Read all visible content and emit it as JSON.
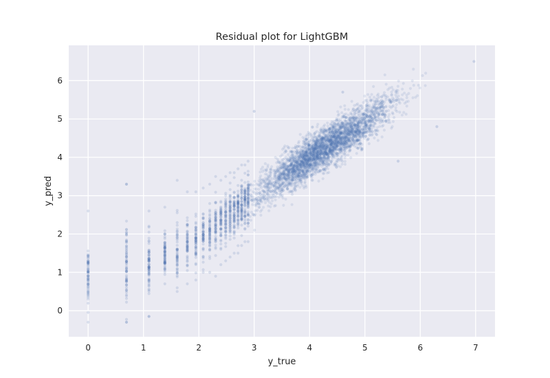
{
  "chart_data": {
    "type": "scatter",
    "title": "Residual plot for LightGBM",
    "xlabel": "y_true",
    "ylabel": "y_pred",
    "xlim": [
      -0.35,
      7.35
    ],
    "ylim": [
      -0.68,
      6.92
    ],
    "xticks": [
      0,
      1,
      2,
      3,
      4,
      5,
      6,
      7
    ],
    "yticks": [
      0,
      1,
      2,
      3,
      4,
      5,
      6
    ],
    "grid": true,
    "legend": "none",
    "colors": {
      "point": "#4c72b0",
      "background": "#eaeaf2",
      "grid": "#ffffff"
    },
    "discrete_columns": [
      {
        "x": 0.0,
        "y_min": -0.3,
        "y_max": 2.6,
        "y_center": 0.9
      },
      {
        "x": 0.693,
        "y_min": -0.3,
        "y_max": 3.3,
        "y_center": 1.1
      },
      {
        "x": 1.099,
        "y_min": -0.15,
        "y_max": 2.6,
        "y_center": 1.3
      },
      {
        "x": 1.386,
        "y_min": 0.7,
        "y_max": 2.7,
        "y_center": 1.45
      },
      {
        "x": 1.609,
        "y_min": 0.5,
        "y_max": 3.4,
        "y_center": 1.6
      },
      {
        "x": 1.792,
        "y_min": 0.7,
        "y_max": 3.1,
        "y_center": 1.75
      },
      {
        "x": 1.946,
        "y_min": 0.8,
        "y_max": 3.1,
        "y_center": 1.85
      },
      {
        "x": 2.079,
        "y_min": 1.0,
        "y_max": 3.2,
        "y_center": 2.0
      },
      {
        "x": 2.197,
        "y_min": 1.0,
        "y_max": 3.3,
        "y_center": 2.1
      },
      {
        "x": 2.303,
        "y_min": 0.9,
        "y_max": 3.5,
        "y_center": 2.2
      },
      {
        "x": 2.398,
        "y_min": 1.2,
        "y_max": 3.4,
        "y_center": 2.3
      },
      {
        "x": 2.485,
        "y_min": 1.3,
        "y_max": 3.5,
        "y_center": 2.4
      },
      {
        "x": 2.565,
        "y_min": 1.4,
        "y_max": 3.6,
        "y_center": 2.5
      },
      {
        "x": 2.639,
        "y_min": 1.5,
        "y_max": 3.6,
        "y_center": 2.6
      },
      {
        "x": 2.708,
        "y_min": 1.5,
        "y_max": 3.7,
        "y_center": 2.65
      },
      {
        "x": 2.773,
        "y_min": 1.7,
        "y_max": 3.8,
        "y_center": 2.75
      },
      {
        "x": 2.833,
        "y_min": 1.8,
        "y_max": 3.8,
        "y_center": 2.8
      },
      {
        "x": 2.89,
        "y_min": 1.8,
        "y_max": 3.9,
        "y_center": 2.9
      }
    ],
    "continuous_band": {
      "x_range": [
        2.9,
        7.0
      ],
      "trend": [
        [
          3.0,
          3.0
        ],
        [
          4.0,
          4.0
        ],
        [
          5.0,
          4.9
        ],
        [
          6.0,
          5.9
        ],
        [
          6.97,
          6.5
        ]
      ],
      "spread_sd": 0.38
    },
    "outliers": [
      {
        "x": 0.693,
        "y": 3.3
      },
      {
        "x": 1.099,
        "y": -0.15
      },
      {
        "x": 0.693,
        "y": -0.3
      },
      {
        "x": 3.0,
        "y": 5.2
      },
      {
        "x": 6.97,
        "y": 6.5
      },
      {
        "x": 6.3,
        "y": 4.8
      },
      {
        "x": 5.6,
        "y": 3.9
      },
      {
        "x": 4.6,
        "y": 5.7
      }
    ]
  }
}
